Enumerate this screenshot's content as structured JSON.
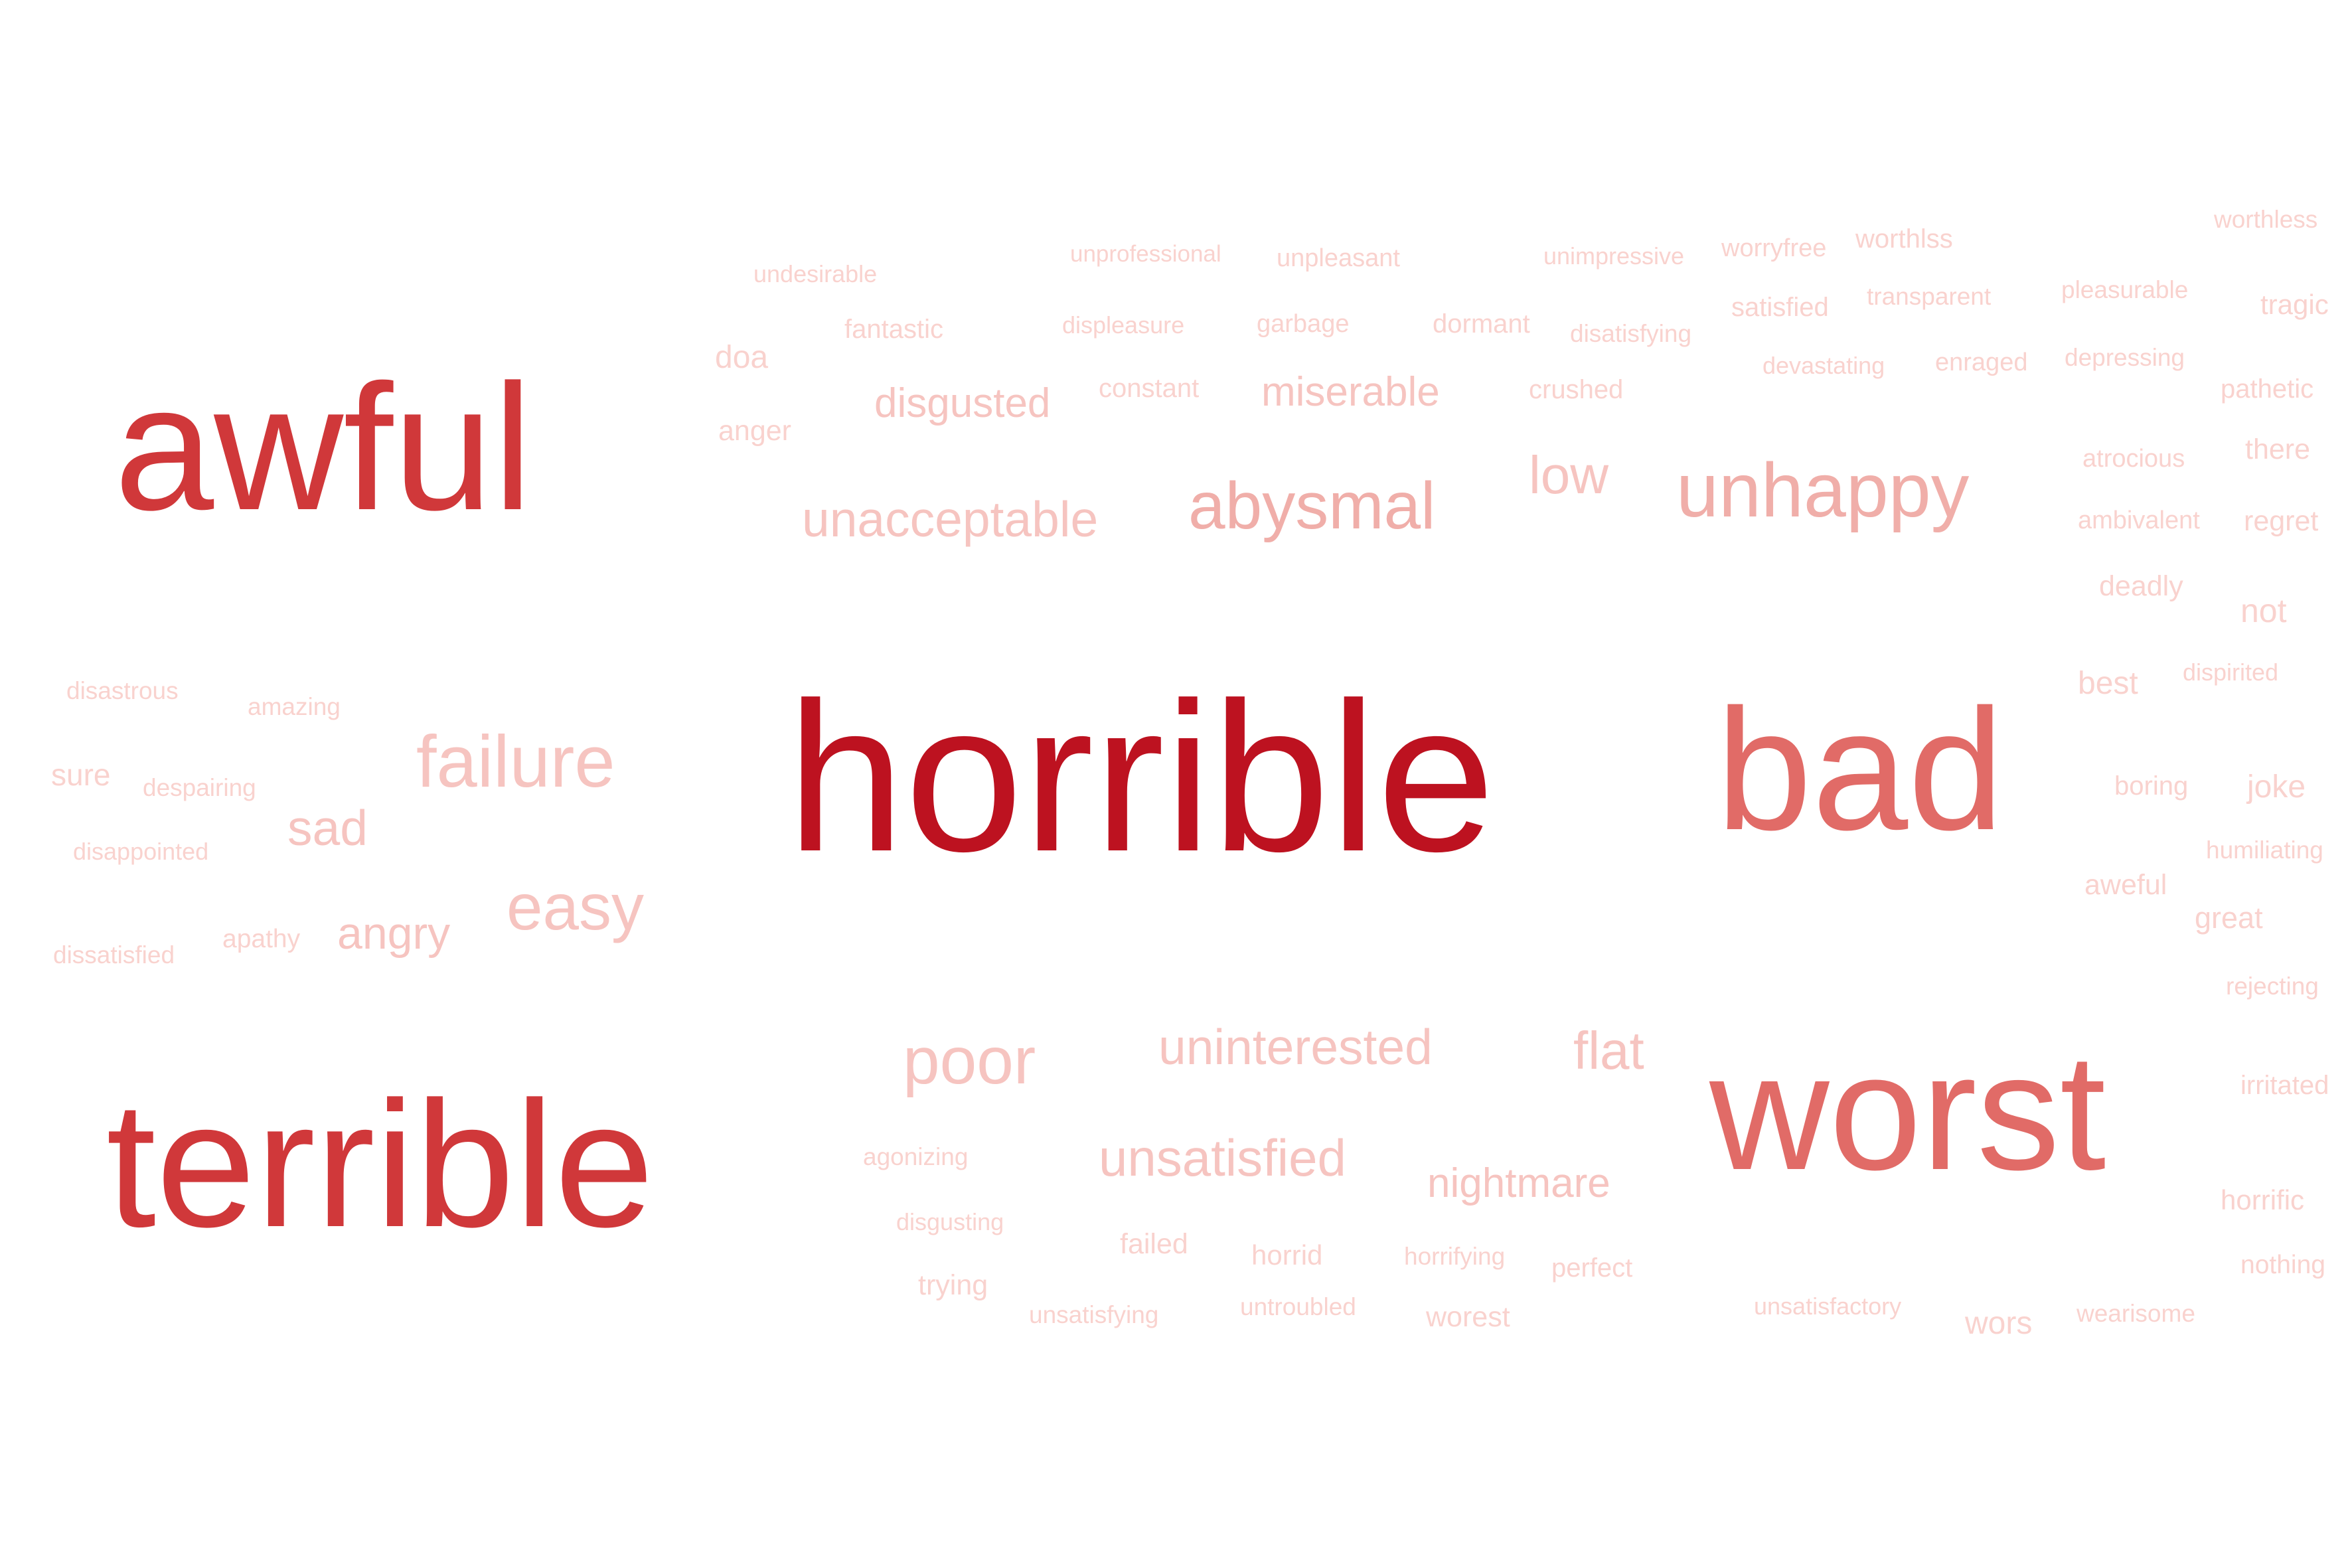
{
  "colors": {
    "background": "#ffffff",
    "c1": "#bd1220",
    "c2": "#d0383a",
    "c3": "#e16b67",
    "c4": "#f0aea9",
    "c5": "#f6c4c0",
    "c6": "#f9d2ce"
  },
  "words": [
    {
      "text": "horrible",
      "weight": 1.0,
      "color": "c1"
    },
    {
      "text": "awful",
      "weight": 0.85,
      "color": "c2"
    },
    {
      "text": "terrible",
      "weight": 0.85,
      "color": "c2"
    },
    {
      "text": "bad",
      "weight": 0.75,
      "color": "c3"
    },
    {
      "text": "worst",
      "weight": 0.75,
      "color": "c3"
    },
    {
      "text": "unhappy",
      "weight": 0.3,
      "color": "c4"
    },
    {
      "text": "abysmal",
      "weight": 0.3,
      "color": "c4"
    },
    {
      "text": "failure",
      "weight": 0.3,
      "color": "c5"
    },
    {
      "text": "easy",
      "weight": 0.3,
      "color": "c5"
    },
    {
      "text": "poor",
      "weight": 0.3,
      "color": "c5"
    },
    {
      "text": "unacceptable",
      "weight": 0.22,
      "color": "c5"
    },
    {
      "text": "uninterested",
      "weight": 0.22,
      "color": "c5"
    },
    {
      "text": "unsatisfied",
      "weight": 0.22,
      "color": "c5"
    },
    {
      "text": "flat",
      "weight": 0.22,
      "color": "c5"
    },
    {
      "text": "low",
      "weight": 0.22,
      "color": "c5"
    },
    {
      "text": "disgusted",
      "weight": 0.18,
      "color": "c5"
    },
    {
      "text": "miserable",
      "weight": 0.18,
      "color": "c5"
    },
    {
      "text": "nightmare",
      "weight": 0.18,
      "color": "c5"
    },
    {
      "text": "sad",
      "weight": 0.18,
      "color": "c5"
    },
    {
      "text": "angry",
      "weight": 0.18,
      "color": "c5"
    },
    {
      "text": "undesirable",
      "weight": 0.1,
      "color": "c6"
    },
    {
      "text": "unprofessional",
      "weight": 0.1,
      "color": "c6"
    },
    {
      "text": "unpleasant",
      "weight": 0.1,
      "color": "c6"
    },
    {
      "text": "unimpressive",
      "weight": 0.1,
      "color": "c6"
    },
    {
      "text": "worryfree",
      "weight": 0.1,
      "color": "c6"
    },
    {
      "text": "worthlss",
      "weight": 0.1,
      "color": "c6"
    },
    {
      "text": "worthless",
      "weight": 0.1,
      "color": "c6"
    },
    {
      "text": "fantastic",
      "weight": 0.1,
      "color": "c6"
    },
    {
      "text": "displeasure",
      "weight": 0.1,
      "color": "c6"
    },
    {
      "text": "garbage",
      "weight": 0.1,
      "color": "c6"
    },
    {
      "text": "dormant",
      "weight": 0.1,
      "color": "c6"
    },
    {
      "text": "disatisfying",
      "weight": 0.1,
      "color": "c6"
    },
    {
      "text": "satisfied",
      "weight": 0.1,
      "color": "c6"
    },
    {
      "text": "transparent",
      "weight": 0.1,
      "color": "c6"
    },
    {
      "text": "pleasurable",
      "weight": 0.1,
      "color": "c6"
    },
    {
      "text": "tragic",
      "weight": 0.1,
      "color": "c6"
    },
    {
      "text": "doa",
      "weight": 0.1,
      "color": "c6"
    },
    {
      "text": "devastating",
      "weight": 0.1,
      "color": "c6"
    },
    {
      "text": "enraged",
      "weight": 0.1,
      "color": "c6"
    },
    {
      "text": "depressing",
      "weight": 0.1,
      "color": "c6"
    },
    {
      "text": "constant",
      "weight": 0.1,
      "color": "c6"
    },
    {
      "text": "crushed",
      "weight": 0.1,
      "color": "c6"
    },
    {
      "text": "pathetic",
      "weight": 0.1,
      "color": "c6"
    },
    {
      "text": "anger",
      "weight": 0.1,
      "color": "c6"
    },
    {
      "text": "there",
      "weight": 0.1,
      "color": "c6"
    },
    {
      "text": "atrocious",
      "weight": 0.1,
      "color": "c6"
    },
    {
      "text": "ambivalent",
      "weight": 0.1,
      "color": "c6"
    },
    {
      "text": "regret",
      "weight": 0.1,
      "color": "c6"
    },
    {
      "text": "deadly",
      "weight": 0.1,
      "color": "c6"
    },
    {
      "text": "not",
      "weight": 0.1,
      "color": "c6"
    },
    {
      "text": "disastrous",
      "weight": 0.1,
      "color": "c6"
    },
    {
      "text": "amazing",
      "weight": 0.1,
      "color": "c6"
    },
    {
      "text": "best",
      "weight": 0.1,
      "color": "c6"
    },
    {
      "text": "dispirited",
      "weight": 0.1,
      "color": "c6"
    },
    {
      "text": "sure",
      "weight": 0.1,
      "color": "c6"
    },
    {
      "text": "despairing",
      "weight": 0.1,
      "color": "c6"
    },
    {
      "text": "boring",
      "weight": 0.1,
      "color": "c6"
    },
    {
      "text": "joke",
      "weight": 0.1,
      "color": "c6"
    },
    {
      "text": "disappointed",
      "weight": 0.1,
      "color": "c6"
    },
    {
      "text": "humiliating",
      "weight": 0.1,
      "color": "c6"
    },
    {
      "text": "aweful",
      "weight": 0.1,
      "color": "c6"
    },
    {
      "text": "great",
      "weight": 0.1,
      "color": "c6"
    },
    {
      "text": "dissatisfied",
      "weight": 0.1,
      "color": "c6"
    },
    {
      "text": "apathy",
      "weight": 0.1,
      "color": "c6"
    },
    {
      "text": "rejecting",
      "weight": 0.1,
      "color": "c6"
    },
    {
      "text": "irritated",
      "weight": 0.1,
      "color": "c6"
    },
    {
      "text": "agonizing",
      "weight": 0.1,
      "color": "c6"
    },
    {
      "text": "horrific",
      "weight": 0.1,
      "color": "c6"
    },
    {
      "text": "disgusting",
      "weight": 0.1,
      "color": "c6"
    },
    {
      "text": "failed",
      "weight": 0.1,
      "color": "c6"
    },
    {
      "text": "horrid",
      "weight": 0.1,
      "color": "c6"
    },
    {
      "text": "horrifying",
      "weight": 0.1,
      "color": "c6"
    },
    {
      "text": "perfect",
      "weight": 0.1,
      "color": "c6"
    },
    {
      "text": "nothing",
      "weight": 0.1,
      "color": "c6"
    },
    {
      "text": "trying",
      "weight": 0.1,
      "color": "c6"
    },
    {
      "text": "unsatisfying",
      "weight": 0.1,
      "color": "c6"
    },
    {
      "text": "untroubled",
      "weight": 0.1,
      "color": "c6"
    },
    {
      "text": "worest",
      "weight": 0.1,
      "color": "c6"
    },
    {
      "text": "unsatisfactory",
      "weight": 0.1,
      "color": "c6"
    },
    {
      "text": "wors",
      "weight": 0.1,
      "color": "c6"
    },
    {
      "text": "wearisome",
      "weight": 0.1,
      "color": "c6"
    }
  ]
}
